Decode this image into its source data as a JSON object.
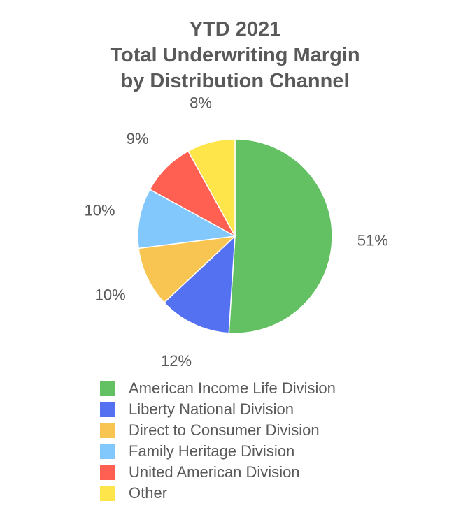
{
  "chart_data": {
    "type": "pie",
    "title": [
      "YTD 2021",
      "Total Underwriting Margin",
      "by Distribution Channel"
    ],
    "legend_position": "bottom",
    "slices": [
      {
        "name": "American Income Life Division",
        "value": 51,
        "label": "51%",
        "color": "#63C063"
      },
      {
        "name": "Liberty National Division",
        "value": 12,
        "label": "12%",
        "color": "#5471F2"
      },
      {
        "name": "Direct to Consumer Division",
        "value": 10,
        "label": "10%",
        "color": "#F9C552"
      },
      {
        "name": "Family Heritage Division",
        "value": 10,
        "label": "10%",
        "color": "#82C8FC"
      },
      {
        "name": "United American Division",
        "value": 9,
        "label": "9%",
        "color": "#FF6052"
      },
      {
        "name": "Other",
        "value": 8,
        "label": "8%",
        "color": "#FEE54A"
      }
    ]
  }
}
